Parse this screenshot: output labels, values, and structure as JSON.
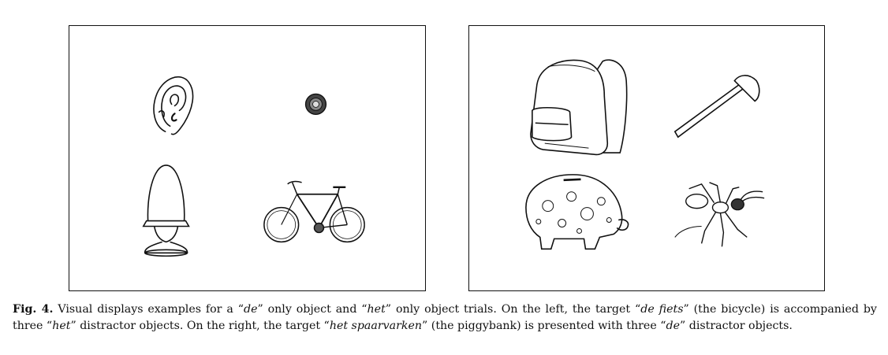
{
  "figure": {
    "left_panel": {
      "objects": [
        "ear",
        "bottle-cap",
        "egg-in-egg-cup",
        "bicycle"
      ]
    },
    "right_panel": {
      "objects": [
        "backpack",
        "axe",
        "piggybank",
        "ant"
      ]
    },
    "caption": {
      "label": "Fig. 4.",
      "t1": " Visual displays examples for a “",
      "de1": "de",
      "t2": "” only object and “",
      "het1": "het",
      "t3": "” only object trials. On the left, the target “",
      "target_left": "de fiets",
      "t4": "” (the bicycle) is accompanied by three “",
      "het2": "het",
      "t5": "” distractor objects. On the right, the target “",
      "target_right": "het spaarvarken",
      "t6": "” (the piggybank) is presented with three “",
      "de2": "de",
      "t7": "” distractor objects."
    }
  }
}
